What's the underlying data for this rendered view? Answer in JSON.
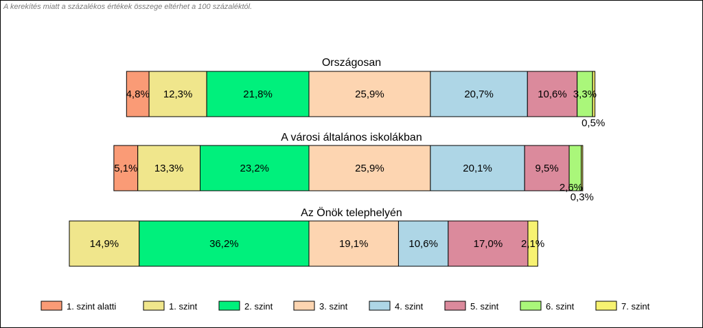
{
  "note": "A kerekítés miatt a  százalékos értékek összege eltérhet a 100 százaléktól.",
  "chart_data": {
    "type": "bar",
    "orientation": "horizontal-stacked-diverging",
    "categories": [
      "1. szint alatti",
      "1. szint",
      "2. szint",
      "3. szint",
      "4. szint",
      "5. szint",
      "6. szint",
      "7. szint"
    ],
    "colors": [
      "#FA9B76",
      "#F0E68C",
      "#00F07C",
      "#FDD5B1",
      "#AED6E6",
      "#DB8A9C",
      "#AAF77A",
      "#F7F271"
    ],
    "rows": [
      {
        "title": "Országosan",
        "values": [
          4.8,
          12.3,
          21.8,
          25.9,
          20.7,
          10.6,
          3.3,
          0.5
        ],
        "labels": [
          "4,8%",
          "12,3%",
          "21,8%",
          "25,9%",
          "20,7%",
          "10,6%",
          "3,3%",
          "0,5%"
        ]
      },
      {
        "title": "A városi általános iskolákban",
        "values": [
          5.1,
          13.3,
          23.2,
          25.9,
          20.1,
          9.5,
          2.6,
          0.3
        ],
        "labels": [
          "5,1%",
          "13,3%",
          "23,2%",
          "25,9%",
          "20,1%",
          "9,5%",
          "2,6%",
          "0,3%"
        ]
      },
      {
        "title": "Az Önök telephelyén",
        "values": [
          0,
          14.9,
          36.2,
          19.1,
          10.6,
          17.0,
          0,
          2.1
        ],
        "labels": [
          "",
          "14,9%",
          "36,2%",
          "19,1%",
          "10,6%",
          "17,0%",
          "",
          "2,1%"
        ]
      }
    ],
    "legend": [
      "1. szint alatti",
      "1. szint",
      "2. szint",
      "3. szint",
      "4. szint",
      "5. szint",
      "6. szint",
      "7. szint"
    ],
    "legend_position": "bottom"
  }
}
